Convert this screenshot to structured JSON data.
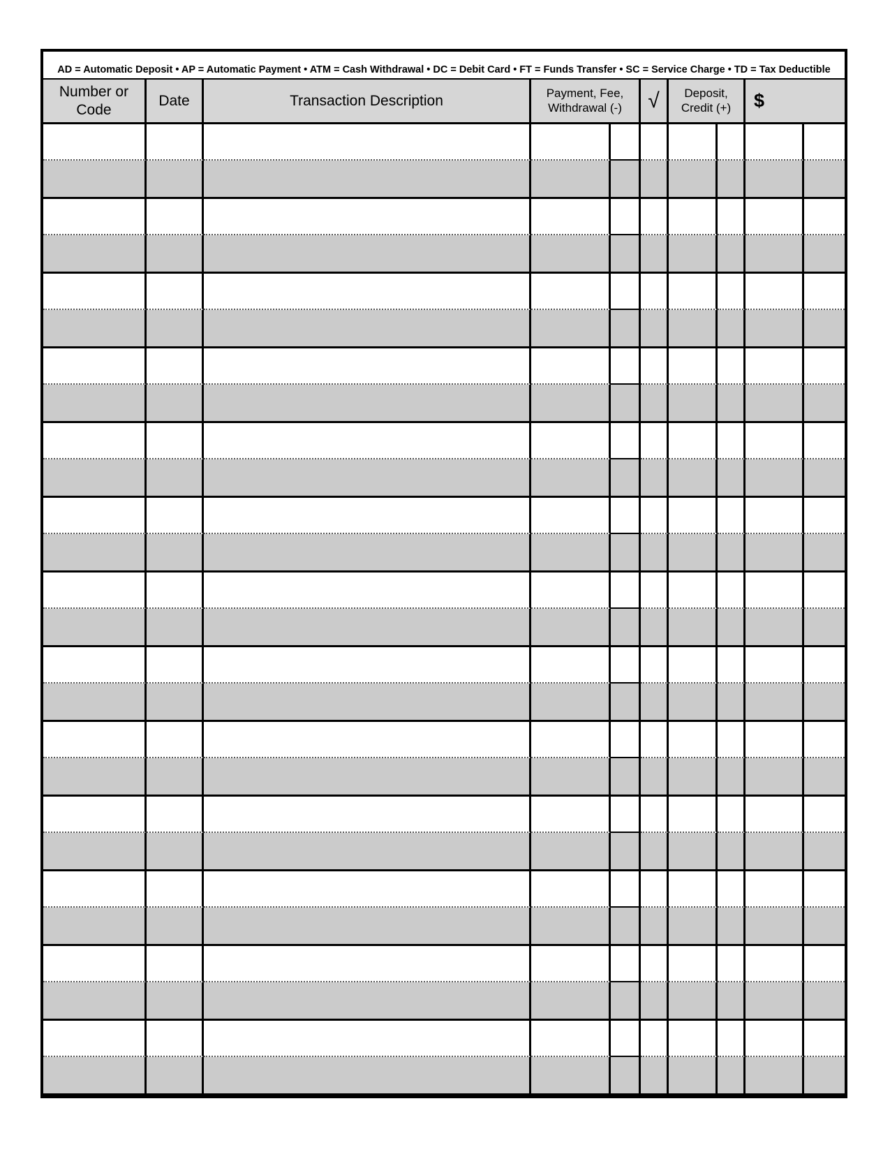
{
  "legend": "AD = Automatic Deposit •  AP = Automatic Payment •  ATM = Cash Withdrawal • DC = Debit Card • FT = Funds Transfer • SC = Service Charge • TD = Tax Deductible",
  "header": {
    "number_or_code": "Number or Code",
    "date": "Date",
    "description": "Transaction Description",
    "payment_line1": "Payment, Fee,",
    "payment_line2": "Withdrawal (-)",
    "check_symbol": "√",
    "deposit_line1": "Deposit,",
    "deposit_line2": "Credit (+)",
    "balance_symbol": "$"
  },
  "table": {
    "row_pair_count": 13,
    "column_names": [
      "number-or-code",
      "date",
      "transaction-description",
      "payment-dollars",
      "payment-cents",
      "check-mark",
      "deposit-dollars",
      "deposit-cents",
      "balance-dollars",
      "balance-cents"
    ]
  },
  "colors": {
    "body_row_shade": "#cbcbcb",
    "header_shade": "#d6d6d6",
    "line_color": "#000000",
    "page_background": "#ffffff"
  }
}
